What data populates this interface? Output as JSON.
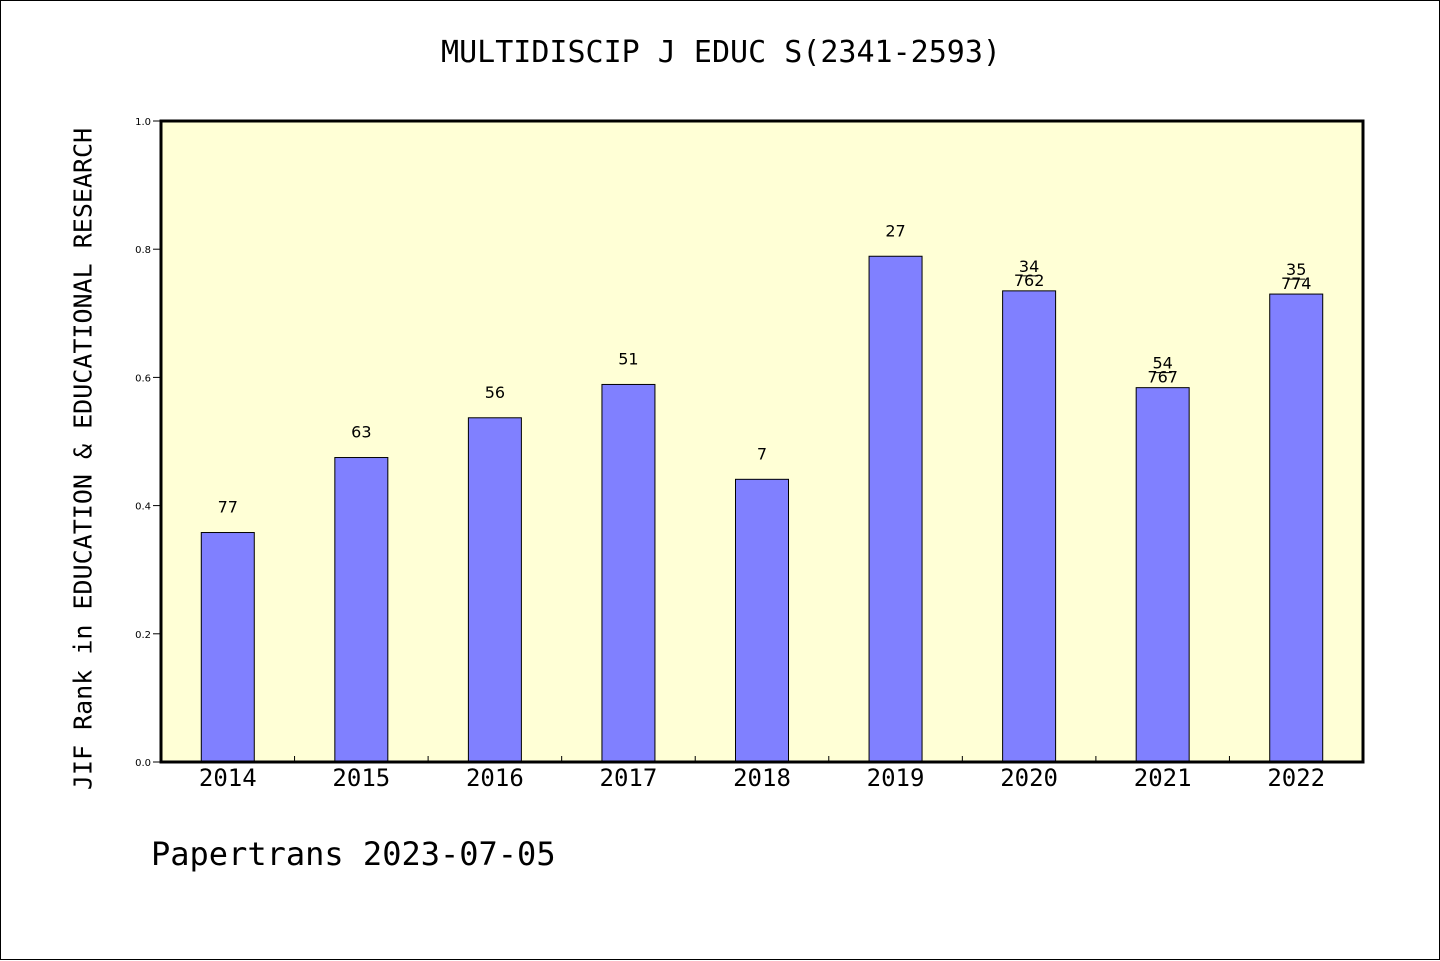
{
  "chart_data": {
    "type": "bar",
    "title": "MULTIDISCIP J EDUC S(2341-2593)",
    "xlabel": "",
    "ylabel": "JIF Rank in EDUCATION & EDUCATIONAL RESEARCH",
    "ylim": [
      0,
      1.0
    ],
    "yticks": [
      "0.0",
      "0.2",
      "0.4",
      "0.6",
      "0.8",
      "1.0"
    ],
    "grid": false,
    "categories": [
      "2014",
      "2015",
      "2016",
      "2017",
      "2018",
      "2019",
      "2020",
      "2021",
      "2022"
    ],
    "values": [
      0.358,
      0.475,
      0.537,
      0.589,
      0.441,
      0.789,
      0.735,
      0.584,
      0.73
    ],
    "bar_labels": [
      [
        "77"
      ],
      [
        "63"
      ],
      [
        "56"
      ],
      [
        "51"
      ],
      [
        "7"
      ],
      [
        "27"
      ],
      [
        "34",
        "762"
      ],
      [
        "54",
        "767"
      ],
      [
        "35",
        "774"
      ]
    ],
    "colors": {
      "plot_bg": "#ffffd6",
      "bar": "#8080ff",
      "bar_edge": "#000000"
    }
  },
  "footer": {
    "text": "Papertrans 2023-07-05"
  }
}
